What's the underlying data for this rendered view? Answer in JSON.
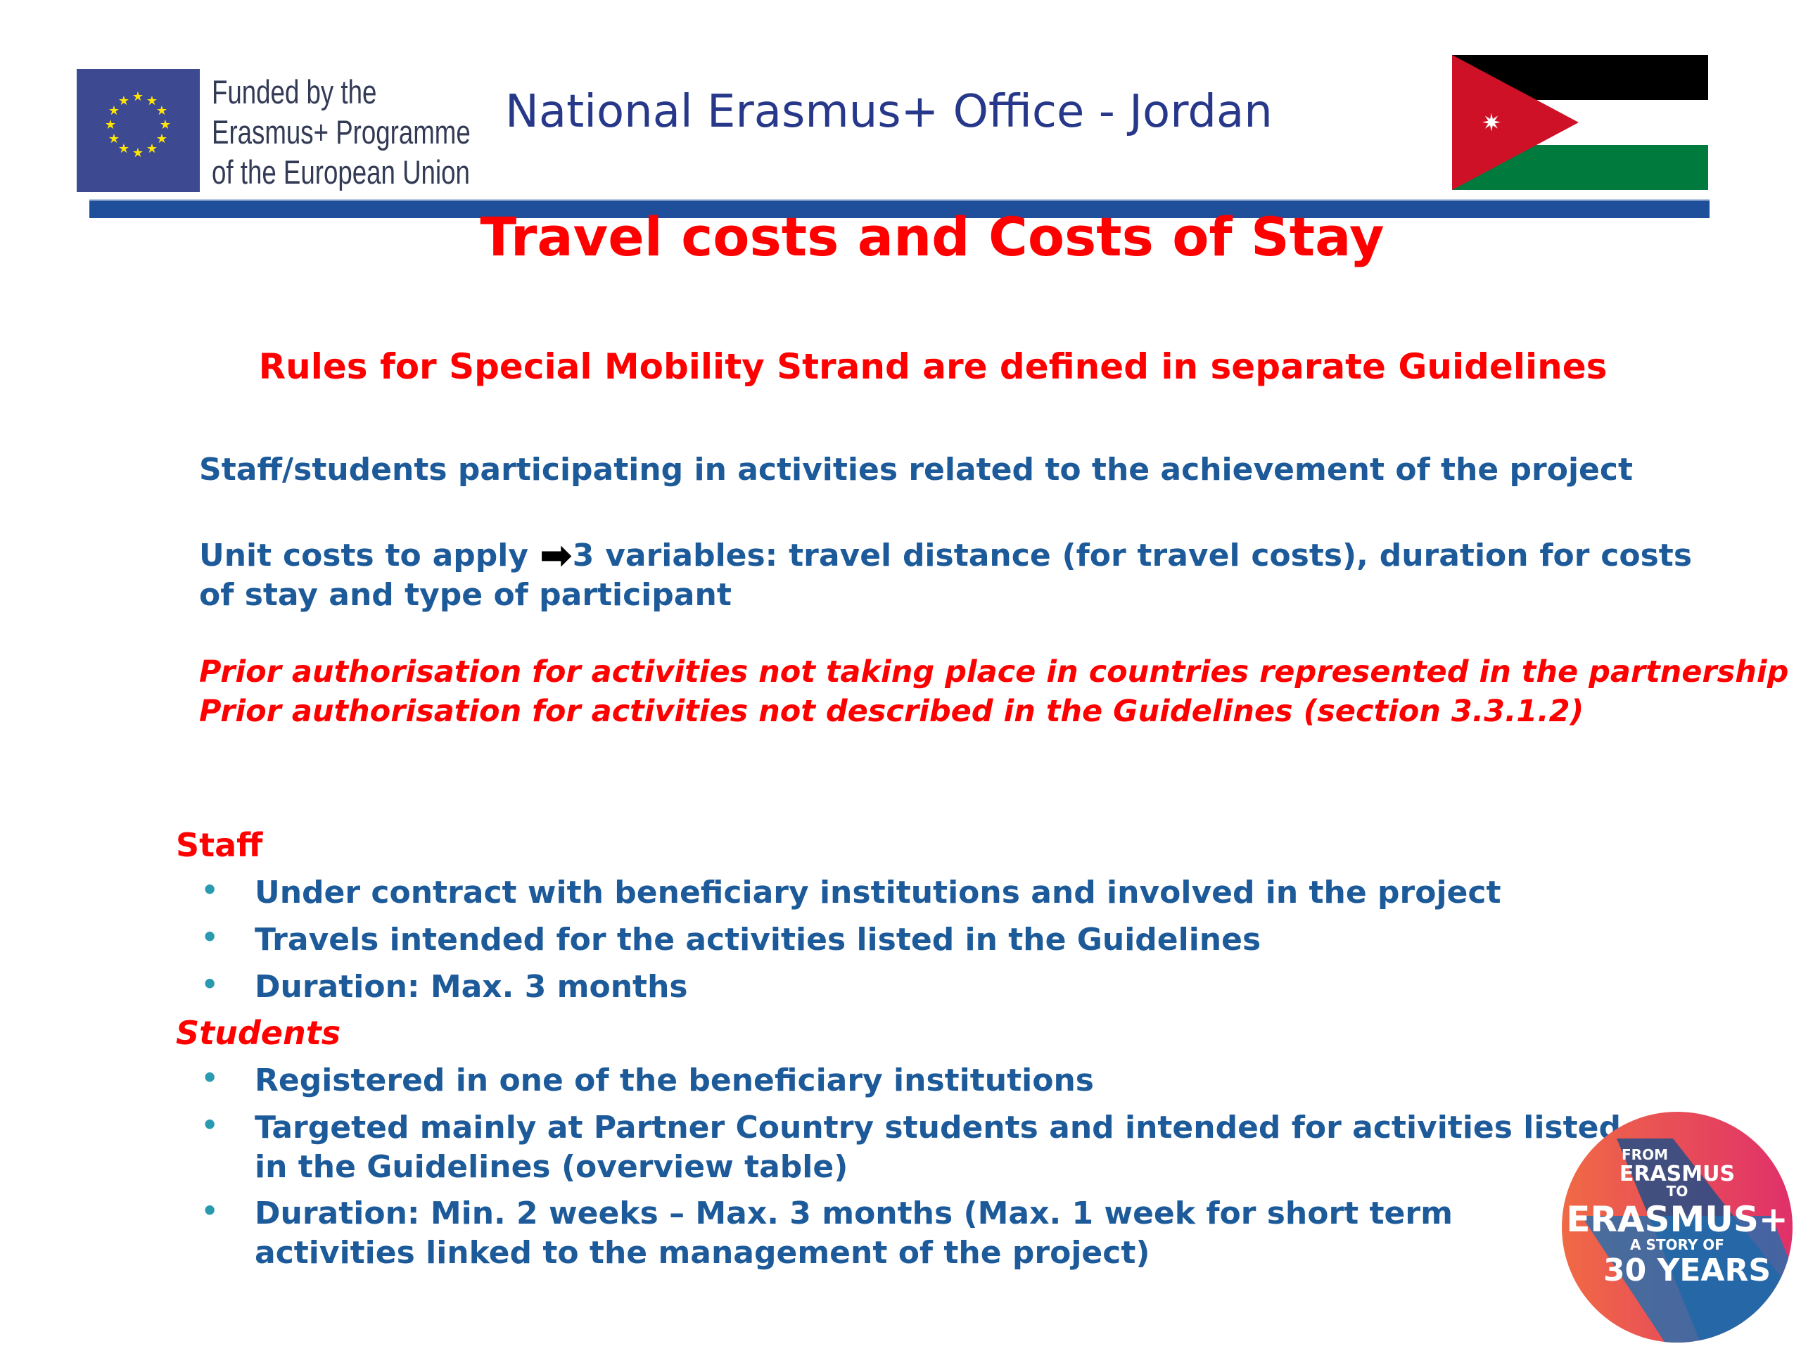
{
  "header": {
    "eu_logo_text": [
      "Funded by the",
      "Erasmus+ Programme",
      "of the European Union"
    ],
    "office_title": "National Erasmus+ Office - Jordan",
    "colors": {
      "eu_blue": "#3d4a92",
      "bar": "#1f4e9a"
    }
  },
  "title": "Travel costs and Costs of Stay",
  "subtitle": "Rules for Special Mobility Strand are defined in separate Guidelines",
  "paragraphs": [
    {
      "text": "Staff/students participating in activities related to the achievement of the project"
    },
    {
      "before": "Unit costs to apply ",
      "icon": "arrow-right-icon",
      "after": "3 variables: travel distance (for travel costs), duration for costs of stay and type of participant"
    }
  ],
  "notes": [
    "Prior authorisation for activities not taking place in countries represented in the partnership",
    "Prior authorisation for activities not described in the Guidelines (section 3.3.1.2)"
  ],
  "staff": {
    "heading": "Staff",
    "items": [
      "Under contract with beneficiary institutions and involved in the project",
      "Travels intended for the activities listed in the Guidelines",
      "Duration: Max. 3 months"
    ]
  },
  "students": {
    "heading": "Students",
    "items": [
      "Registered in one of the beneficiary institutions",
      [
        "Targeted mainly at Partner Country students and intended for activities listed",
        "in the Guidelines (overview table)"
      ],
      [
        "Duration: Min. 2 weeks – Max. 3 months (Max. 1 week for short term",
        "activities linked to the management of the project)"
      ]
    ]
  },
  "badge": {
    "lines": [
      "FROM",
      "ERASMUS",
      "TO",
      "ERASMUS+",
      "A STORY OF",
      "30 YEARS"
    ]
  },
  "colors": {
    "title_red": "#ff0000",
    "body_blue": "#1d5a99",
    "bullet": "#2a9ab0"
  }
}
